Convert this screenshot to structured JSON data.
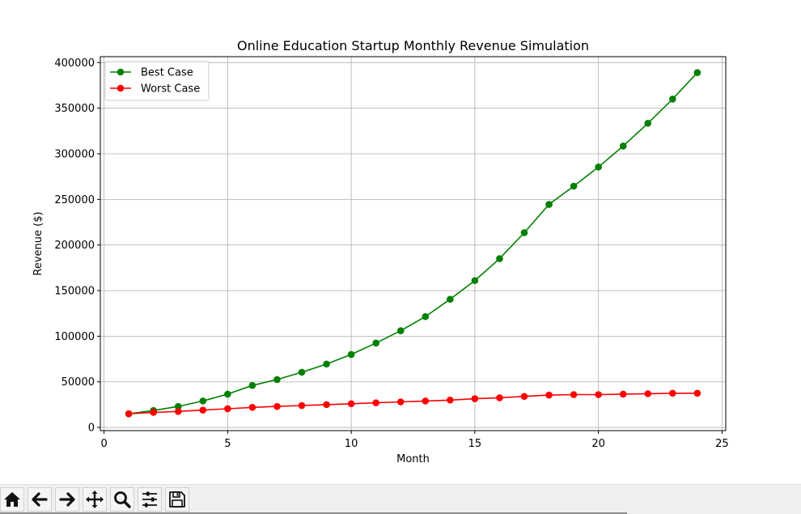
{
  "chart_data": {
    "type": "line",
    "title": "Online Education Startup Monthly Revenue Simulation",
    "xlabel": "Month",
    "ylabel": "Revenue ($)",
    "xlim": [
      -0.15,
      25.15
    ],
    "ylim": [
      -3500,
      406500
    ],
    "xticks": [
      0,
      5,
      10,
      15,
      20,
      25
    ],
    "yticks": [
      0,
      50000,
      100000,
      150000,
      200000,
      250000,
      300000,
      350000,
      400000
    ],
    "grid": true,
    "legend_position": "upper-left",
    "x": [
      1,
      2,
      3,
      4,
      5,
      6,
      7,
      8,
      9,
      10,
      11,
      12,
      13,
      14,
      15,
      16,
      17,
      18,
      19,
      20,
      21,
      22,
      23,
      24
    ],
    "series": [
      {
        "name": "Best Case",
        "color": "#008000",
        "values": [
          15000,
          18500,
          23000,
          29000,
          36500,
          46000,
          52500,
          60500,
          69500,
          80000,
          92500,
          106000,
          121500,
          140500,
          161000,
          185000,
          213500,
          244500,
          264500,
          285500,
          308500,
          333500,
          360000,
          389000
        ]
      },
      {
        "name": "Worst Case",
        "color": "#ff0000",
        "values": [
          15000,
          16500,
          17500,
          19000,
          20500,
          22000,
          23000,
          24000,
          25000,
          26000,
          27000,
          28000,
          29000,
          30000,
          31500,
          32500,
          34000,
          35500,
          36000,
          36000,
          36500,
          37000,
          37500,
          37500
        ]
      }
    ]
  },
  "toolbar": {
    "buttons": [
      {
        "name": "home-button",
        "icon": "home-icon"
      },
      {
        "name": "back-button",
        "icon": "arrow-left-icon"
      },
      {
        "name": "forward-button",
        "icon": "arrow-right-icon"
      },
      {
        "name": "pan-button",
        "icon": "move-icon"
      },
      {
        "name": "zoom-button",
        "icon": "magnifier-icon"
      },
      {
        "name": "configure-subplots-button",
        "icon": "sliders-icon"
      },
      {
        "name": "save-button",
        "icon": "floppy-disk-icon"
      }
    ]
  }
}
